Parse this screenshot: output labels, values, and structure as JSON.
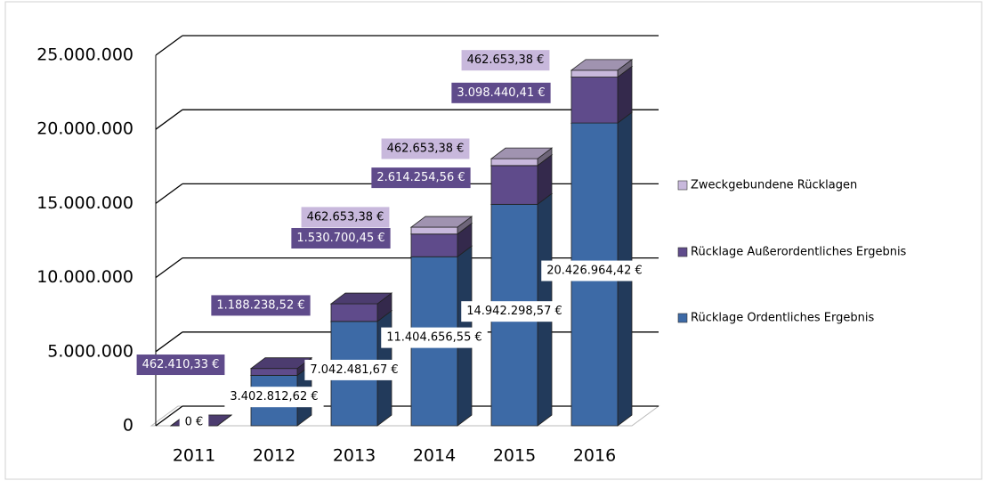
{
  "chart_data": {
    "type": "bar3d_stacked",
    "categories": [
      "2011",
      "2012",
      "2013",
      "2014",
      "2015",
      "2016"
    ],
    "series": [
      {
        "name": "Rücklage Ordentliches Ergebnis",
        "color": "#3d6aa6",
        "values": [
          0,
          3402812.62,
          7042481.67,
          11404656.55,
          14942298.57,
          20426964.42
        ],
        "value_labels": [
          "0 €",
          "3.402.812,62 €",
          "7.042.481,67 €",
          "11.404.656,55 €",
          "14.942.298,57 €",
          "20.426.964,42 €"
        ]
      },
      {
        "name": "Rücklage Außerordentliches Ergebnis",
        "color": "#5f4b8b",
        "values": [
          0,
          462410.33,
          1188238.52,
          1530700.45,
          2614254.56,
          3098440.41
        ],
        "value_labels": [
          null,
          "462.410,33 €",
          "1.188.238,52 €",
          "1.530.700,45 €",
          "2.614.254,56 €",
          "3.098.440,41 €"
        ]
      },
      {
        "name": "Zweckgebundene Rücklagen",
        "color": "#c8b8dc",
        "values": [
          null,
          null,
          null,
          462653.38,
          462653.38,
          462653.38
        ],
        "value_labels": [
          null,
          null,
          null,
          "462.653,38 €",
          "462.653,38 €",
          "462.653,38 €"
        ]
      }
    ],
    "ylim": [
      0,
      25000000
    ],
    "yticks": [
      0,
      {
        "value": 5000000,
        "label": "5.000.000"
      },
      {
        "value": 10000000,
        "label": "10.000.000"
      },
      {
        "value": 15000000,
        "label": "15.000.000"
      },
      {
        "value": 20000000,
        "label": "20.000.000"
      },
      {
        "value": 25000000,
        "label": "25.000.000"
      }
    ],
    "grid": true,
    "legend": "right"
  }
}
